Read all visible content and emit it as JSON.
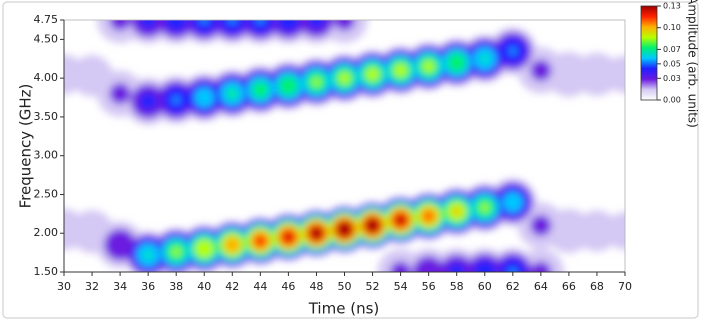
{
  "chart_data": {
    "type": "heatmap",
    "xlabel": "Time (ns)",
    "ylabel": "Frequency (GHz)",
    "colorbar_label": "Amplitude (arb. units)",
    "xlim": [
      30,
      70
    ],
    "xticks": [
      30,
      32,
      34,
      36,
      38,
      40,
      42,
      44,
      46,
      48,
      50,
      52,
      54,
      56,
      58,
      60,
      62,
      64,
      66,
      68,
      70
    ],
    "ylim": [
      1.5,
      4.75
    ],
    "yticks": [
      {
        "value": 1.5,
        "label": "1.50"
      },
      {
        "value": 2,
        "label": "2.00"
      },
      {
        "value": 2.5,
        "label": "2.50"
      },
      {
        "value": 3,
        "label": "3.00"
      },
      {
        "value": 3.5,
        "label": "3.50"
      },
      {
        "value": 4,
        "label": "4.00"
      },
      {
        "value": 4.5,
        "label": "4.50"
      },
      4.75
    ],
    "clim": [
      0,
      0.13
    ],
    "cticks": [
      {
        "value": 0,
        "label": "0.00"
      },
      {
        "value": 0.03,
        "label": "0.03"
      },
      {
        "value": 0.05,
        "label": "0.05"
      },
      {
        "value": 0.07,
        "label": "0.07"
      },
      {
        "value": 0.1,
        "label": "0.10"
      },
      0.13
    ],
    "colormap": [
      "#ffffff",
      "#d4c8f4",
      "#6a1ae0",
      "#2020ff",
      "#00c8ff",
      "#00f070",
      "#b8ff00",
      "#ffb000",
      "#ff2000",
      "#a00000"
    ],
    "ridges": [
      {
        "x": [
          30,
          32,
          34,
          36,
          38,
          40,
          42,
          44,
          46,
          48,
          50,
          52,
          54,
          56,
          58,
          60,
          62,
          64,
          66,
          68,
          70
        ],
        "frequency": [
          2.05,
          2.02,
          1.85,
          1.72,
          1.76,
          1.8,
          1.85,
          1.9,
          1.95,
          2.0,
          2.05,
          2.1,
          2.17,
          2.22,
          2.28,
          2.33,
          2.4,
          2.1,
          2.03,
          2.03,
          2.03
        ],
        "amplitude": [
          0.006,
          0.008,
          0.03,
          0.06,
          0.075,
          0.088,
          0.1,
          0.11,
          0.118,
          0.125,
          0.13,
          0.128,
          0.12,
          0.105,
          0.09,
          0.075,
          0.055,
          0.02,
          0.01,
          0.006,
          0.004
        ]
      },
      {
        "x": [
          30,
          32,
          34,
          36,
          38,
          40,
          42,
          44,
          46,
          48,
          50,
          52,
          54,
          56,
          58,
          60,
          62,
          64,
          66,
          68,
          70
        ],
        "frequency": [
          4.05,
          4.03,
          3.8,
          3.7,
          3.72,
          3.75,
          3.8,
          3.85,
          3.9,
          3.95,
          4.0,
          4.05,
          4.1,
          4.15,
          4.2,
          4.25,
          4.35,
          4.1,
          4.05,
          4.05,
          4.05
        ],
        "amplitude": [
          0.005,
          0.006,
          0.02,
          0.035,
          0.045,
          0.055,
          0.062,
          0.068,
          0.072,
          0.075,
          0.078,
          0.08,
          0.08,
          0.078,
          0.072,
          0.06,
          0.045,
          0.02,
          0.012,
          0.008,
          0.004
        ]
      },
      {
        "x": [
          34,
          36,
          38,
          40,
          42,
          44,
          46,
          48,
          50
        ],
        "frequency": [
          4.75,
          4.75,
          4.75,
          4.75,
          4.75,
          4.75,
          4.75,
          4.75,
          4.75
        ],
        "amplitude": [
          0.02,
          0.035,
          0.04,
          0.045,
          0.045,
          0.045,
          0.04,
          0.035,
          0.02
        ]
      },
      {
        "x": [
          54,
          56,
          58,
          60,
          62,
          64
        ],
        "frequency": [
          1.5,
          1.5,
          1.5,
          1.5,
          1.5,
          1.5
        ],
        "amplitude": [
          0.02,
          0.03,
          0.035,
          0.04,
          0.045,
          0.02
        ]
      }
    ]
  }
}
